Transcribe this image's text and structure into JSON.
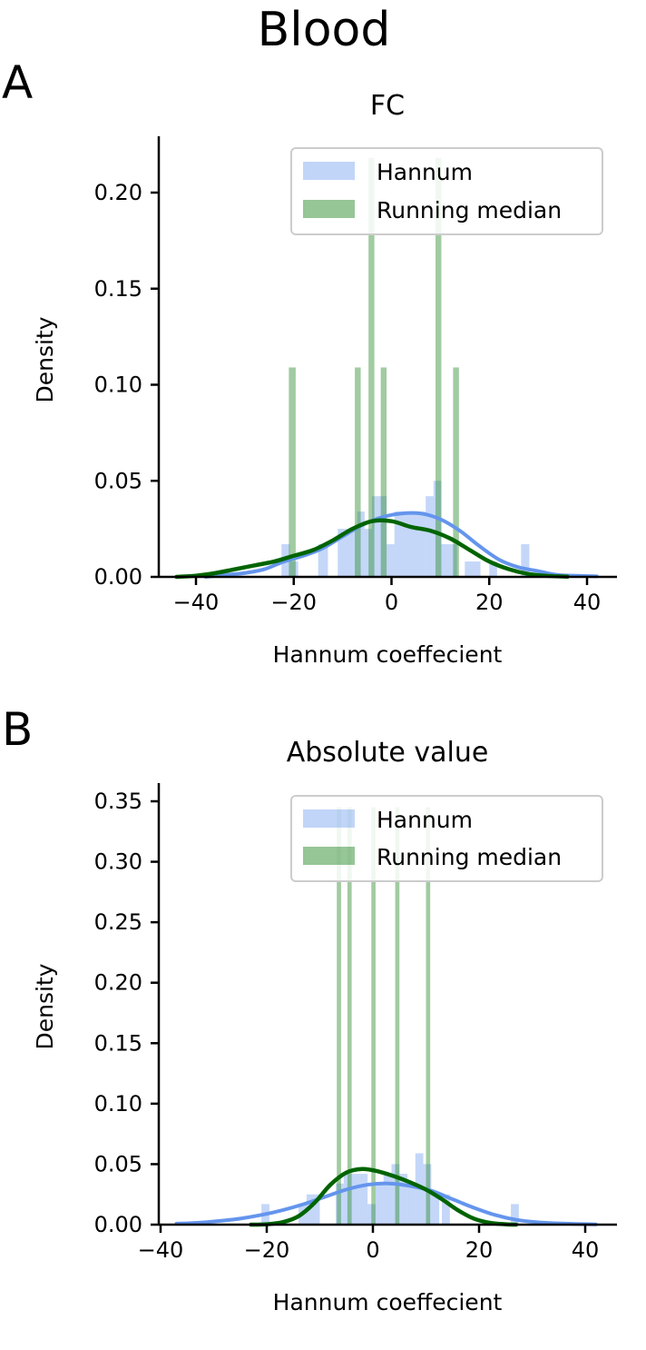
{
  "figure": {
    "suptitle": "Blood"
  },
  "colors": {
    "hannum_hist": "#6495ED",
    "hannum_kde": "#6495ED",
    "median_hist": "#2E8B2E",
    "median_kde": "#006400",
    "axis": "#000000"
  },
  "chart_data": [
    {
      "panel": "A",
      "type": "bar",
      "title": "FC",
      "xlabel": "Hannum coeffecient",
      "ylabel": "Density",
      "xlim": [
        -46,
        46
      ],
      "ylim": [
        0,
        0.23
      ],
      "xticks": [
        -40,
        -20,
        0,
        20,
        40
      ],
      "xtick_labels": [
        "−40",
        "−20",
        "0",
        "20",
        "40"
      ],
      "yticks": [
        0.0,
        0.05,
        0.1,
        0.15,
        0.2
      ],
      "ytick_labels": [
        "0.00",
        "0.05",
        "0.10",
        "0.15",
        "0.20"
      ],
      "legend": {
        "position": "upper right",
        "entries": [
          "Hannum",
          "Running median"
        ]
      },
      "series": [
        {
          "name": "Hannum",
          "kind": "histogram",
          "bins": [
            {
              "x0": -22.5,
              "x1": -20.8,
              "y": 0.017
            },
            {
              "x0": -20.8,
              "x1": -19.1,
              "y": 0.008
            },
            {
              "x0": -15.0,
              "x1": -13.0,
              "y": 0.017
            },
            {
              "x0": -11.0,
              "x1": -9.0,
              "y": 0.025
            },
            {
              "x0": -9.0,
              "x1": -7.0,
              "y": 0.025
            },
            {
              "x0": -7.0,
              "x1": -5.5,
              "y": 0.034
            },
            {
              "x0": -5.5,
              "x1": -4.0,
              "y": 0.025
            },
            {
              "x0": -4.0,
              "x1": -2.5,
              "y": 0.042
            },
            {
              "x0": -2.5,
              "x1": -1.0,
              "y": 0.042
            },
            {
              "x0": -1.0,
              "x1": 0.6,
              "y": 0.017
            },
            {
              "x0": 0.6,
              "x1": 2.2,
              "y": 0.034
            },
            {
              "x0": 2.2,
              "x1": 3.8,
              "y": 0.034
            },
            {
              "x0": 3.8,
              "x1": 5.4,
              "y": 0.034
            },
            {
              "x0": 5.4,
              "x1": 7.0,
              "y": 0.034
            },
            {
              "x0": 7.0,
              "x1": 8.6,
              "y": 0.042
            },
            {
              "x0": 8.6,
              "x1": 10.2,
              "y": 0.05
            },
            {
              "x0": 10.2,
              "x1": 11.8,
              "y": 0.017
            },
            {
              "x0": 11.8,
              "x1": 13.4,
              "y": 0.017
            },
            {
              "x0": 15.0,
              "x1": 16.6,
              "y": 0.008
            },
            {
              "x0": 16.6,
              "x1": 18.2,
              "y": 0.008
            },
            {
              "x0": 20.0,
              "x1": 21.6,
              "y": 0.008
            },
            {
              "x0": 26.5,
              "x1": 28.2,
              "y": 0.017
            }
          ]
        },
        {
          "name": "Running median",
          "kind": "histogram",
          "bins": [
            {
              "x0": -21.0,
              "x1": -19.6,
              "y": 0.109
            },
            {
              "x0": -7.5,
              "x1": -6.3,
              "y": 0.109
            },
            {
              "x0": -4.7,
              "x1": -3.5,
              "y": 0.218
            },
            {
              "x0": -2.2,
              "x1": -1.0,
              "y": 0.109
            },
            {
              "x0": 9.0,
              "x1": 10.2,
              "y": 0.218
            },
            {
              "x0": 12.6,
              "x1": 13.8,
              "y": 0.109
            }
          ]
        },
        {
          "name": "Hannum",
          "kind": "kde",
          "x": [
            -38,
            -34,
            -30,
            -26,
            -22,
            -18,
            -14,
            -10,
            -6,
            -2,
            2,
            6,
            10,
            14,
            18,
            22,
            26,
            30,
            34,
            38,
            42
          ],
          "y": [
            0.0,
            0.001,
            0.002,
            0.004,
            0.008,
            0.011,
            0.015,
            0.021,
            0.027,
            0.031,
            0.033,
            0.033,
            0.03,
            0.024,
            0.016,
            0.009,
            0.005,
            0.003,
            0.001,
            0.0006,
            0.0003
          ]
        },
        {
          "name": "Running median",
          "kind": "kde",
          "x": [
            -44,
            -40,
            -36,
            -32,
            -28,
            -24,
            -20,
            -16,
            -12,
            -8,
            -4,
            0,
            4,
            8,
            12,
            16,
            20,
            24,
            28,
            32,
            36
          ],
          "y": [
            0.0,
            0.0006,
            0.002,
            0.004,
            0.006,
            0.008,
            0.011,
            0.014,
            0.019,
            0.025,
            0.029,
            0.029,
            0.026,
            0.024,
            0.02,
            0.014,
            0.008,
            0.004,
            0.0015,
            0.0005,
            0.0001
          ]
        }
      ]
    },
    {
      "panel": "B",
      "type": "bar",
      "title": "Absolute value",
      "xlabel": "Hannum coeffecient",
      "ylabel": "Density",
      "xlim": [
        -40,
        46
      ],
      "ylim": [
        0,
        0.365
      ],
      "xticks": [
        -40,
        -20,
        0,
        20,
        40
      ],
      "xtick_labels": [
        "−40",
        "−20",
        "0",
        "20",
        "40"
      ],
      "yticks": [
        0.0,
        0.05,
        0.1,
        0.15,
        0.2,
        0.25,
        0.3,
        0.35
      ],
      "ytick_labels": [
        "0.00",
        "0.05",
        "0.10",
        "0.15",
        "0.20",
        "0.25",
        "0.30",
        "0.35"
      ],
      "legend": {
        "position": "upper right",
        "entries": [
          "Hannum",
          "Running median"
        ]
      },
      "series": [
        {
          "name": "Hannum",
          "kind": "histogram",
          "bins": [
            {
              "x0": -21.0,
              "x1": -19.5,
              "y": 0.017
            },
            {
              "x0": -14.0,
              "x1": -12.5,
              "y": 0.017
            },
            {
              "x0": -12.5,
              "x1": -10.0,
              "y": 0.025
            },
            {
              "x0": -7.0,
              "x1": -5.5,
              "y": 0.034
            },
            {
              "x0": -5.5,
              "x1": -4.0,
              "y": 0.042
            },
            {
              "x0": -4.0,
              "x1": -2.5,
              "y": 0.042
            },
            {
              "x0": -2.5,
              "x1": -1.0,
              "y": 0.042
            },
            {
              "x0": -1.0,
              "x1": 0.5,
              "y": 0.017
            },
            {
              "x0": 0.5,
              "x1": 2.0,
              "y": 0.034
            },
            {
              "x0": 2.0,
              "x1": 3.5,
              "y": 0.042
            },
            {
              "x0": 3.5,
              "x1": 5.0,
              "y": 0.05
            },
            {
              "x0": 5.0,
              "x1": 6.5,
              "y": 0.042
            },
            {
              "x0": 6.5,
              "x1": 8.0,
              "y": 0.034
            },
            {
              "x0": 8.0,
              "x1": 9.5,
              "y": 0.059
            },
            {
              "x0": 9.5,
              "x1": 11.0,
              "y": 0.05
            },
            {
              "x0": 11.0,
              "x1": 12.5,
              "y": 0.025
            },
            {
              "x0": 13.0,
              "x1": 14.5,
              "y": 0.025
            },
            {
              "x0": 26.0,
              "x1": 27.5,
              "y": 0.017
            }
          ]
        },
        {
          "name": "Running median",
          "kind": "histogram",
          "bins": [
            {
              "x0": -6.8,
              "x1": -6.0,
              "y": 0.345
            },
            {
              "x0": -4.8,
              "x1": -4.0,
              "y": 0.345
            },
            {
              "x0": -0.3,
              "x1": 0.5,
              "y": 0.345
            },
            {
              "x0": 4.2,
              "x1": 5.0,
              "y": 0.345
            },
            {
              "x0": 10.0,
              "x1": 10.8,
              "y": 0.345
            }
          ]
        },
        {
          "name": "Hannum",
          "kind": "kde",
          "x": [
            -37,
            -33,
            -29,
            -25,
            -21,
            -17,
            -13,
            -9,
            -5,
            -1,
            3,
            7,
            11,
            15,
            19,
            23,
            27,
            31,
            35,
            39,
            42
          ],
          "y": [
            0.0008,
            0.0015,
            0.003,
            0.005,
            0.008,
            0.012,
            0.017,
            0.023,
            0.029,
            0.033,
            0.034,
            0.032,
            0.028,
            0.021,
            0.014,
            0.008,
            0.004,
            0.002,
            0.001,
            0.0005,
            0.0002
          ]
        },
        {
          "name": "Running median",
          "kind": "kde",
          "x": [
            -23,
            -20,
            -17,
            -14,
            -11,
            -8,
            -5,
            -2,
            1,
            4,
            7,
            10,
            13,
            16,
            19,
            22,
            25,
            27
          ],
          "y": [
            0.0,
            0.0003,
            0.002,
            0.007,
            0.018,
            0.033,
            0.043,
            0.046,
            0.044,
            0.04,
            0.035,
            0.029,
            0.021,
            0.012,
            0.005,
            0.0015,
            0.0003,
            0.0
          ]
        }
      ]
    }
  ]
}
